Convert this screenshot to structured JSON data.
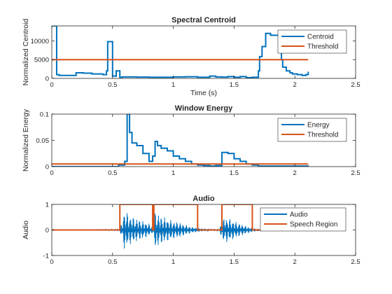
{
  "figure": {
    "background": "#ffffff"
  },
  "colors": {
    "series1": "#0072BD",
    "series2": "#D95319",
    "axis": "#262626",
    "frame": "#000000"
  },
  "chart_data": [
    {
      "type": "line",
      "title": "Spectral Centroid",
      "xlabel": "Time (s)",
      "ylabel": "Normalized Centroid",
      "xlim": [
        0,
        2.5
      ],
      "ylim": [
        0,
        14000
      ],
      "xticks": [
        "0",
        "0.5",
        "1",
        "1.5",
        "2",
        "2.5"
      ],
      "xtick_values": [
        0,
        0.5,
        1,
        1.5,
        2,
        2.5
      ],
      "yticks": [
        "0",
        "5000",
        "10000"
      ],
      "ytick_values": [
        0,
        5000,
        10000
      ],
      "legend_position": "top-right",
      "series": [
        {
          "name": "Centroid",
          "step": true,
          "x": [
            0,
            0.04,
            0.06,
            0.2,
            0.26,
            0.33,
            0.42,
            0.45,
            0.46,
            0.5,
            0.53,
            0.56,
            0.58,
            0.7,
            0.8,
            0.9,
            1.0,
            1.1,
            1.2,
            1.3,
            1.35,
            1.4,
            1.45,
            1.5,
            1.55,
            1.6,
            1.65,
            1.7,
            1.71,
            1.73,
            1.76,
            1.8,
            1.87,
            1.89,
            1.9,
            1.93,
            1.96,
            1.98,
            2.02,
            2.06,
            2.09,
            2.11
          ],
          "y": [
            14000,
            1000,
            800,
            1500,
            1400,
            1200,
            1000,
            2000,
            9800,
            600,
            2000,
            300,
            400,
            350,
            300,
            300,
            400,
            450,
            300,
            600,
            400,
            350,
            500,
            300,
            500,
            200,
            300,
            2000,
            5800,
            8500,
            12000,
            11500,
            11000,
            5000,
            3000,
            2000,
            1500,
            1200,
            1000,
            800,
            1000,
            1800
          ]
        },
        {
          "name": "Threshold",
          "x": [
            0,
            2.11
          ],
          "y": [
            5000,
            5000
          ]
        }
      ]
    },
    {
      "type": "line",
      "title": "Window Energy",
      "xlabel": "",
      "ylabel": "Normalized Energy",
      "xlim": [
        0,
        2.5
      ],
      "ylim": [
        0,
        0.1
      ],
      "xticks": [
        "0",
        "0.5",
        "1",
        "1.5",
        "2",
        "2.5"
      ],
      "xtick_values": [
        0,
        0.5,
        1,
        1.5,
        2,
        2.5
      ],
      "yticks": [
        "0",
        "0.05",
        "0.1"
      ],
      "ytick_values": [
        0,
        0.05,
        0.1
      ],
      "legend_position": "top-right",
      "series": [
        {
          "name": "Energy",
          "step": true,
          "x": [
            0,
            0.55,
            0.6,
            0.62,
            0.64,
            0.66,
            0.7,
            0.75,
            0.8,
            0.83,
            0.85,
            0.87,
            0.9,
            0.95,
            1.0,
            1.05,
            1.1,
            1.15,
            1.2,
            1.25,
            1.3,
            1.35,
            1.4,
            1.45,
            1.5,
            1.55,
            1.6,
            1.65,
            1.7,
            2.11
          ],
          "y": [
            0,
            0.003,
            0.01,
            0.1,
            0.065,
            0.045,
            0.04,
            0.025,
            0.01,
            0.02,
            0.048,
            0.04,
            0.035,
            0.03,
            0.02,
            0.015,
            0.01,
            0.005,
            0.003,
            0.002,
            0.001,
            0.002,
            0.027,
            0.025,
            0.015,
            0.01,
            0.005,
            0.003,
            0.001,
            0
          ]
        },
        {
          "name": "Threshold",
          "x": [
            0,
            2.11
          ],
          "y": [
            0.005,
            0.005
          ]
        }
      ]
    },
    {
      "type": "line",
      "title": "Audio",
      "xlabel": "",
      "ylabel": "Audio",
      "xlim": [
        0,
        2.5
      ],
      "ylim": [
        -1,
        1
      ],
      "xticks": [
        "0",
        "0.5",
        "1",
        "1.5",
        "2",
        "2.5"
      ],
      "xtick_values": [
        0,
        0.5,
        1,
        1.5,
        2,
        2.5
      ],
      "yticks": [
        "-1",
        "0",
        "1"
      ],
      "ytick_values": [
        -1,
        0,
        1
      ],
      "legend_position": "top-right",
      "series": [
        {
          "name": "Audio",
          "envelope": true,
          "x": [
            0,
            0.55,
            0.58,
            0.6,
            0.63,
            0.65,
            0.7,
            0.75,
            0.8,
            0.83,
            0.85,
            0.87,
            0.9,
            0.95,
            1.0,
            1.05,
            1.1,
            1.15,
            1.2,
            1.25,
            1.3,
            1.38,
            1.4,
            1.43,
            1.46,
            1.5,
            1.55,
            1.6,
            1.65,
            1.7,
            1.8,
            2.11
          ],
          "amplitude": [
            0,
            0.02,
            0.3,
            0.85,
            0.6,
            0.55,
            0.45,
            0.35,
            0.25,
            0.1,
            0.75,
            0.65,
            0.55,
            0.45,
            0.35,
            0.3,
            0.2,
            0.12,
            0.08,
            0.05,
            0.03,
            0.02,
            0.4,
            0.5,
            0.45,
            0.35,
            0.25,
            0.15,
            0.08,
            0.04,
            0.01,
            0
          ]
        },
        {
          "name": "Speech Region",
          "x": [
            0,
            0.56,
            0.56,
            0.83,
            0.83,
            0.84,
            0.84,
            1.2,
            1.2,
            1.4,
            1.4,
            1.65,
            1.65,
            2.11
          ],
          "y": [
            0,
            0,
            1,
            1,
            0,
            0,
            1,
            1,
            0,
            0,
            1,
            1,
            0,
            0
          ]
        }
      ]
    }
  ]
}
